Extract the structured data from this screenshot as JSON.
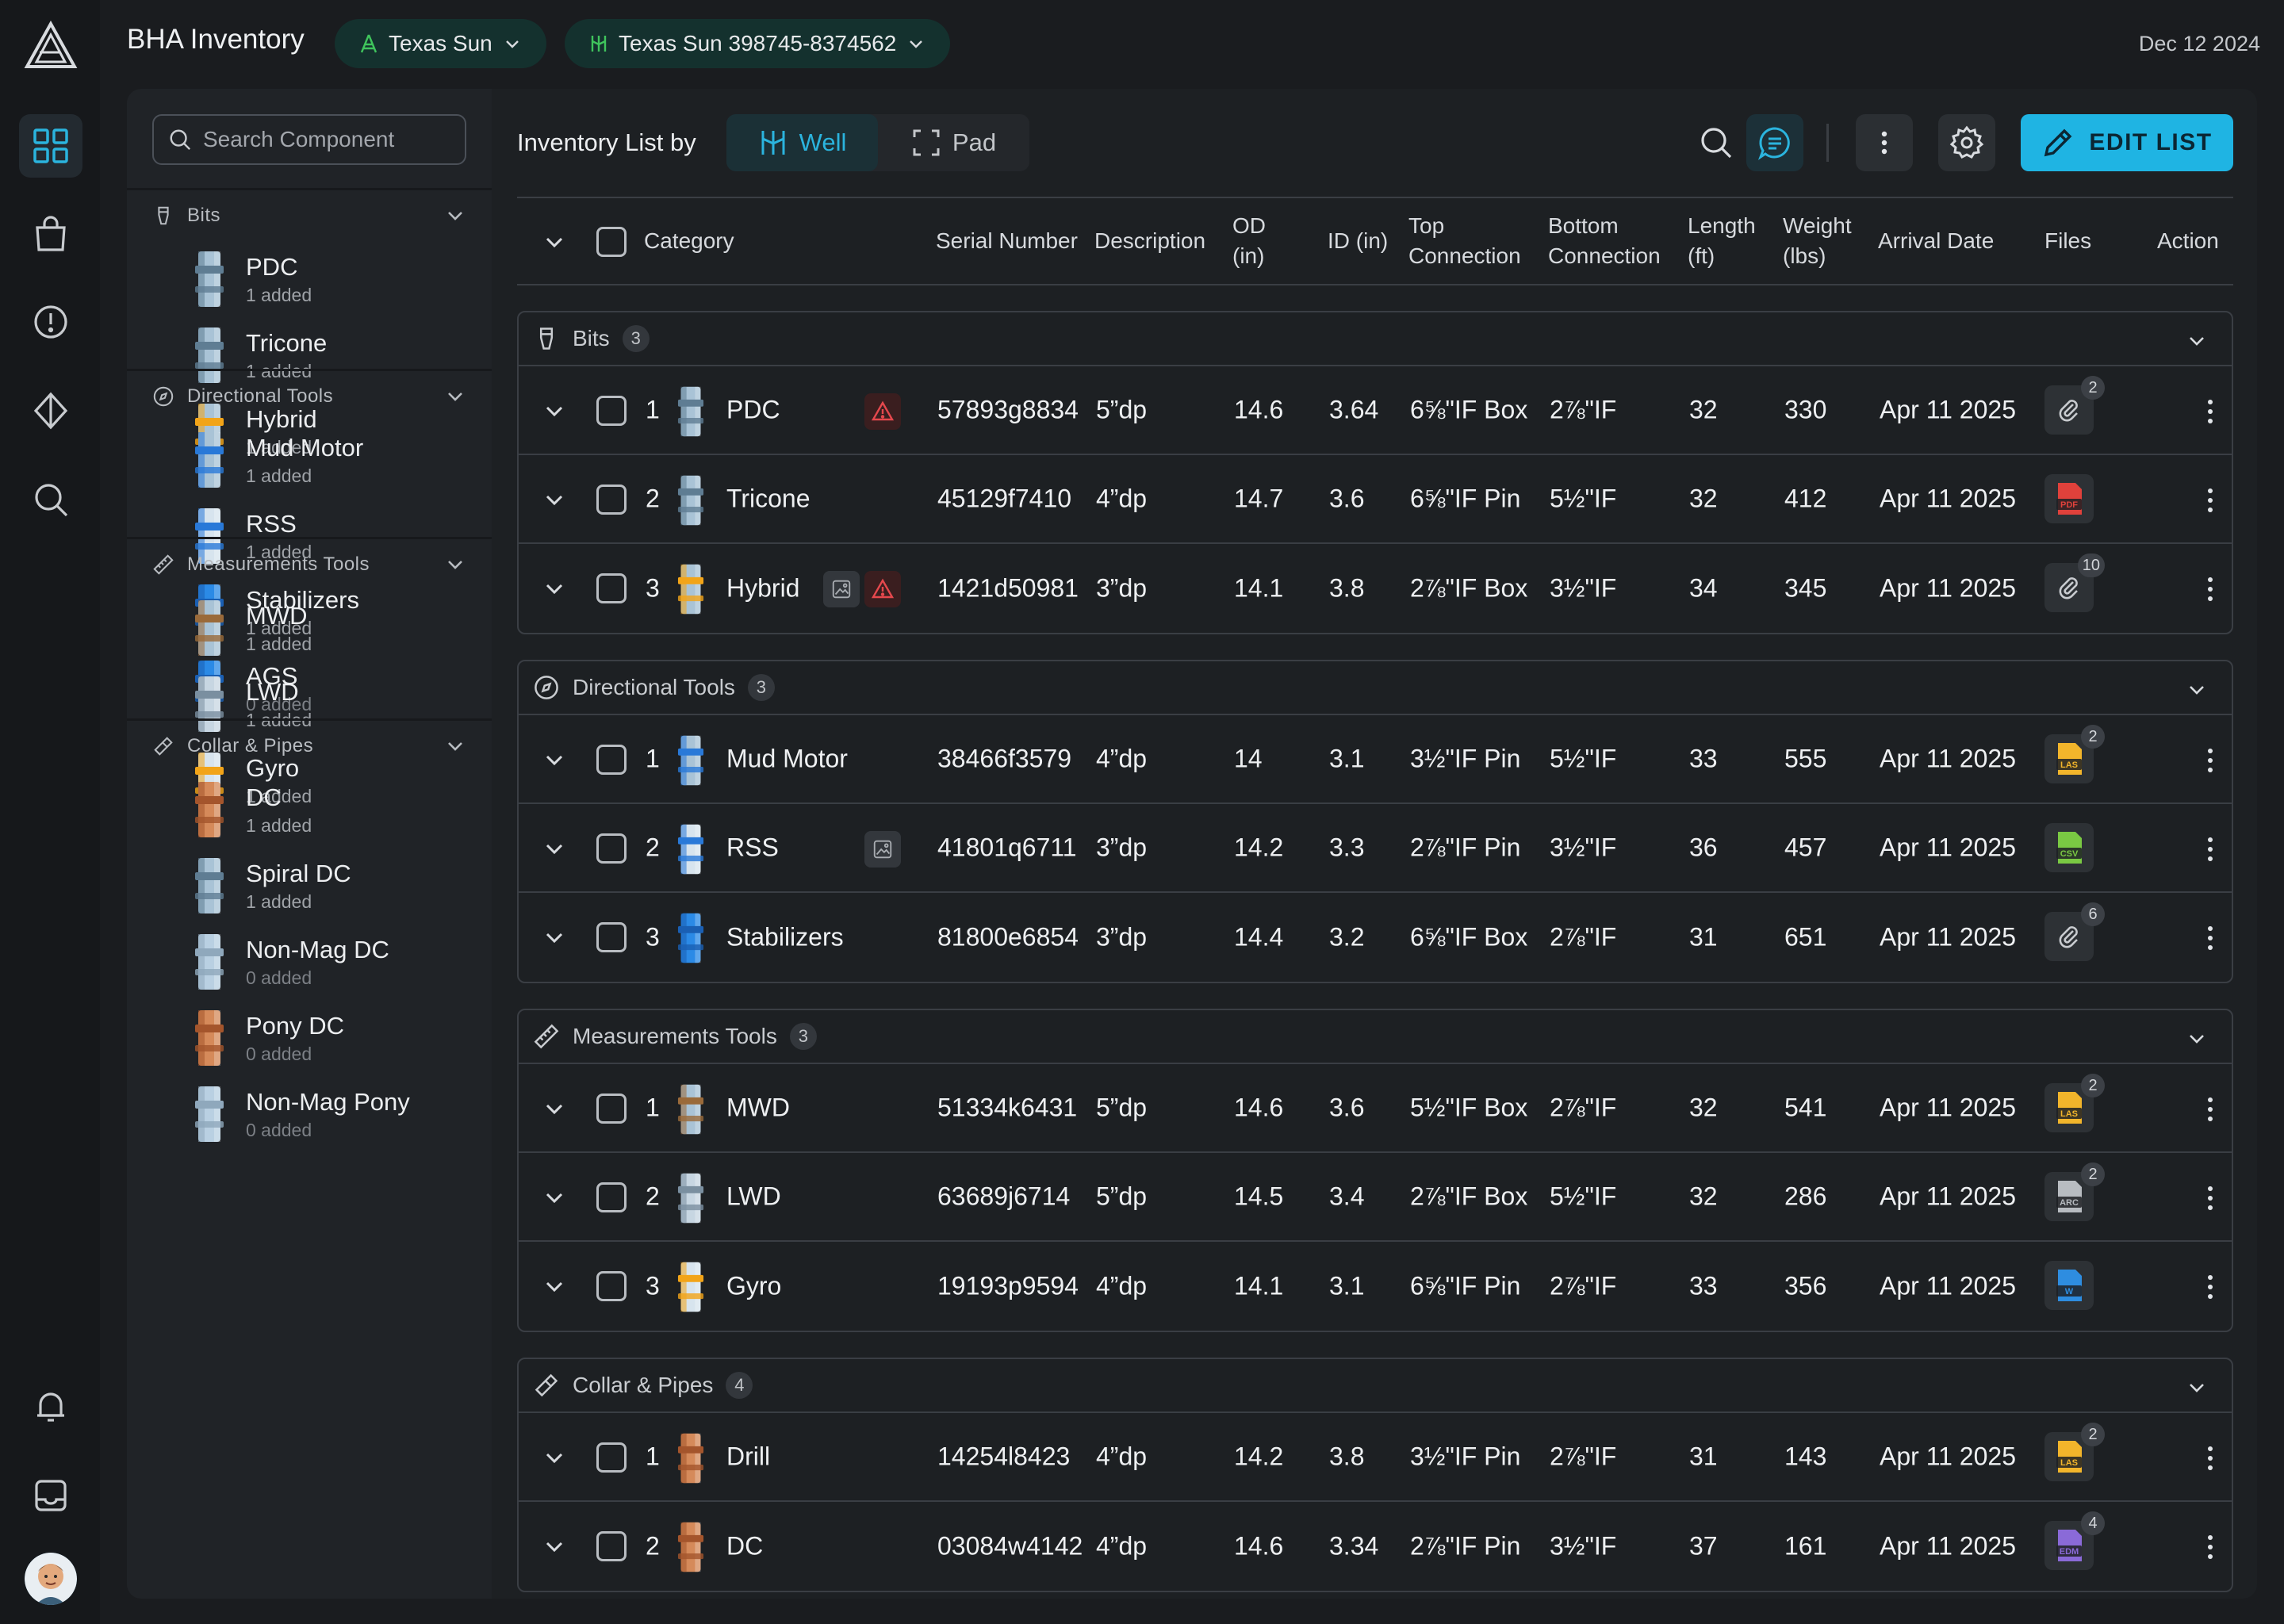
{
  "app": {
    "title": "BHA Inventory",
    "date": "Dec 12 2024"
  },
  "topbar": {
    "site": "Texas Sun",
    "well": "Texas Sun 398745-8374562"
  },
  "rail": {
    "items": [
      "dashboard-icon",
      "shopping-bag-icon",
      "alert-icon",
      "diamond-icon",
      "search-icon",
      "bell-icon",
      "inbox-icon"
    ],
    "accent": "#1fb4e3"
  },
  "sidebar": {
    "search_placeholder": "Search Component",
    "groups": [
      {
        "title": "Bits",
        "items": [
          {
            "name": "PDC",
            "status": "1 added"
          },
          {
            "name": "Tricone",
            "status": "1 added"
          },
          {
            "name": "Hybrid",
            "status": "1 added"
          }
        ]
      },
      {
        "title": "Directional Tools",
        "items": [
          {
            "name": "Mud Motor",
            "status": "1 added"
          },
          {
            "name": "RSS",
            "status": "1 added"
          },
          {
            "name": "Stabilizers",
            "status": "1 added"
          },
          {
            "name": "AGS",
            "status": "0 added"
          }
        ]
      },
      {
        "title": "Measurements Tools",
        "items": [
          {
            "name": "MWD",
            "status": "1 added"
          },
          {
            "name": "LWD",
            "status": "1 added"
          },
          {
            "name": "Gyro",
            "status": "1 added"
          }
        ]
      },
      {
        "title": "Collar & Pipes",
        "items": [
          {
            "name": "DC",
            "status": "1 added"
          },
          {
            "name": "Spiral DC",
            "status": "1 added"
          },
          {
            "name": "Non-Mag DC",
            "status": "0 added"
          },
          {
            "name": "Pony DC",
            "status": "0 added"
          },
          {
            "name": "Non-Mag Pony",
            "status": "0 added"
          }
        ]
      }
    ]
  },
  "toolbar": {
    "list_by_label": "Inventory List by",
    "seg_well": "Well",
    "seg_pad": "Pad",
    "edit_label": "EDIT LIST"
  },
  "table": {
    "headers": {
      "category": "Category",
      "serial": "Serial Number",
      "description": "Description",
      "od": [
        "OD",
        "(in)"
      ],
      "id": "ID (in)",
      "top": [
        "Top",
        "Connection"
      ],
      "bottom": [
        "Bottom",
        "Connection"
      ],
      "length": [
        "Length",
        "(ft)"
      ],
      "weight": [
        "Weight",
        "(lbs)"
      ],
      "arrival": "Arrival Date",
      "files": "Files",
      "action": "Action"
    },
    "groups": [
      {
        "title": "Bits",
        "count": "3",
        "rows": [
          {
            "idx": "1",
            "name": "PDC",
            "serial": "57893g8834",
            "desc": "5”dp",
            "od": "14.6",
            "id": "3.64",
            "top": "6⅝\"IF Box",
            "bottom": "2⅞\"IF",
            "length": "32",
            "weight": "330",
            "arrival": "Apr 11 2025",
            "file": "clip",
            "file_count": "2",
            "warn": true,
            "img": false
          },
          {
            "idx": "2",
            "name": "Tricone",
            "serial": "45129f7410",
            "desc": "4”dp",
            "od": "14.7",
            "id": "3.6",
            "top": "6⅝\"IF Pin",
            "bottom": "5½\"IF",
            "length": "32",
            "weight": "412",
            "arrival": "Apr 11 2025",
            "file": "PDF",
            "file_count": "",
            "warn": false,
            "img": false
          },
          {
            "idx": "3",
            "name": "Hybrid",
            "serial": "1421d50981",
            "desc": "3”dp",
            "od": "14.1",
            "id": "3.8",
            "top": "2⅞\"IF Box",
            "bottom": "3½\"IF",
            "length": "34",
            "weight": "345",
            "arrival": "Apr 11 2025",
            "file": "clip",
            "file_count": "10",
            "warn": true,
            "img": true
          }
        ]
      },
      {
        "title": "Directional Tools",
        "count": "3",
        "rows": [
          {
            "idx": "1",
            "name": "Mud Motor",
            "serial": "38466f3579",
            "desc": "4”dp",
            "od": "14",
            "id": "3.1",
            "top": "3½\"IF Pin",
            "bottom": "5½\"IF",
            "length": "33",
            "weight": "555",
            "arrival": "Apr 11 2025",
            "file": "LAS",
            "file_count": "2",
            "warn": false,
            "img": false
          },
          {
            "idx": "2",
            "name": "RSS",
            "serial": "41801q6711",
            "desc": "3”dp",
            "od": "14.2",
            "id": "3.3",
            "top": "2⅞\"IF Pin",
            "bottom": "3½\"IF",
            "length": "36",
            "weight": "457",
            "arrival": "Apr 11 2025",
            "file": "CSV",
            "file_count": "",
            "warn": false,
            "img": true
          },
          {
            "idx": "3",
            "name": "Stabilizers",
            "serial": "81800e6854",
            "desc": "3”dp",
            "od": "14.4",
            "id": "3.2",
            "top": "6⅝\"IF Box",
            "bottom": "2⅞\"IF",
            "length": "31",
            "weight": "651",
            "arrival": "Apr 11 2025",
            "file": "clip",
            "file_count": "6",
            "warn": false,
            "img": false
          }
        ]
      },
      {
        "title": "Measurements Tools",
        "count": "3",
        "rows": [
          {
            "idx": "1",
            "name": "MWD",
            "serial": "51334k6431",
            "desc": "5”dp",
            "od": "14.6",
            "id": "3.6",
            "top": "5½\"IF Box",
            "bottom": "2⅞\"IF",
            "length": "32",
            "weight": "541",
            "arrival": "Apr 11 2025",
            "file": "LAS",
            "file_count": "2",
            "warn": false,
            "img": false
          },
          {
            "idx": "2",
            "name": "LWD",
            "serial": "63689j6714",
            "desc": "5”dp",
            "od": "14.5",
            "id": "3.4",
            "top": "2⅞\"IF Box",
            "bottom": "5½\"IF",
            "length": "32",
            "weight": "286",
            "arrival": "Apr 11 2025",
            "file": "ARC",
            "file_count": "2",
            "warn": false,
            "img": false
          },
          {
            "idx": "3",
            "name": "Gyro",
            "serial": "19193p9594",
            "desc": "4”dp",
            "od": "14.1",
            "id": "3.1",
            "top": "6⅝\"IF Pin",
            "bottom": "2⅞\"IF",
            "length": "33",
            "weight": "356",
            "arrival": "Apr 11 2025",
            "file": "W",
            "file_count": "",
            "warn": false,
            "img": false
          }
        ]
      },
      {
        "title": "Collar & Pipes",
        "count": "4",
        "rows": [
          {
            "idx": "1",
            "name": "Drill",
            "serial": "14254l8423",
            "desc": "4”dp",
            "od": "14.2",
            "id": "3.8",
            "top": "3½\"IF Pin",
            "bottom": "2⅞\"IF",
            "length": "31",
            "weight": "143",
            "arrival": "Apr 11 2025",
            "file": "LAS",
            "file_count": "2",
            "warn": false,
            "img": false
          },
          {
            "idx": "2",
            "name": "DC",
            "serial": "03084w4142",
            "desc": "4”dp",
            "od": "14.6",
            "id": "3.34",
            "top": "2⅞\"IF Pin",
            "bottom": "3½\"IF",
            "length": "37",
            "weight": "161",
            "arrival": "Apr 11 2025",
            "file": "EDM",
            "file_count": "4",
            "warn": false,
            "img": false
          }
        ]
      }
    ]
  },
  "file_colors": {
    "LAS": "#f2b52b",
    "PDF": "#e0413b",
    "CSV": "#7ac943",
    "ARC": "#b8bcc1",
    "W": "#2e8de0",
    "EDM": "#8a6ad8"
  }
}
